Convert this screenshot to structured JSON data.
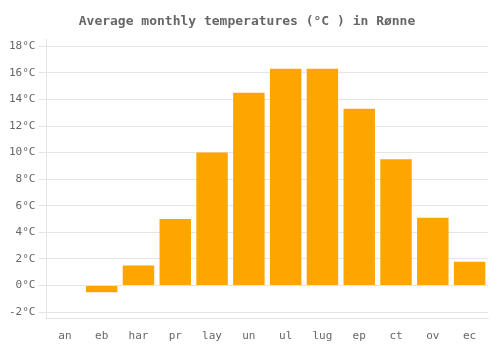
{
  "chart_data": {
    "type": "bar",
    "title": "Average monthly temperatures (°C ) in Rønne",
    "categories": [
      "an",
      "eb",
      "har",
      "pr",
      "lay",
      "un",
      "ul",
      "lug",
      "ep",
      "ct",
      "ov",
      "ec"
    ],
    "values": [
      0.0,
      -0.5,
      1.5,
      5.0,
      10.0,
      14.5,
      16.3,
      16.3,
      13.3,
      9.5,
      5.1,
      1.8
    ],
    "color": "#FFA500",
    "ylim": [
      -2.5,
      18.5
    ],
    "yticks": [
      {
        "value": -2,
        "label": "-2°C"
      },
      {
        "value": 0,
        "label": "0°C"
      },
      {
        "value": 2,
        "label": "2°C"
      },
      {
        "value": 4,
        "label": "4°C"
      },
      {
        "value": 6,
        "label": "6°C"
      },
      {
        "value": 8,
        "label": "8°C"
      },
      {
        "value": 10,
        "label": "10°C"
      },
      {
        "value": 12,
        "label": "12°C"
      },
      {
        "value": 14,
        "label": "14°C"
      },
      {
        "value": 16,
        "label": "16°C"
      },
      {
        "value": 18,
        "label": "18°C"
      }
    ],
    "grid": true
  }
}
